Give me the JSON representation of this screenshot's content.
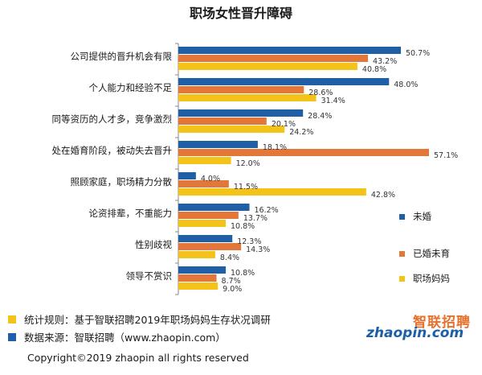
{
  "chart_data": {
    "type": "bar",
    "orientation": "horizontal",
    "title": "职场女性晋升障碍",
    "categories": [
      "公司提供的晋升机会有限",
      "个人能力和经验不足",
      "同等资历的人才多，竞争激烈",
      "处在婚育阶段，被动失去晋升",
      "照顾家庭，职场精力分散",
      "论资排辈，不重能力",
      "性别歧视",
      "领导不赏识"
    ],
    "series": [
      {
        "name": "未婚",
        "color": "#1f5fa6",
        "values": [
          50.7,
          48.0,
          28.4,
          18.1,
          4.0,
          16.2,
          12.3,
          10.8
        ]
      },
      {
        "name": "已婚未育",
        "color": "#e3773a",
        "values": [
          43.2,
          28.6,
          20.1,
          57.1,
          11.5,
          13.7,
          14.3,
          8.7
        ]
      },
      {
        "name": "职场妈妈",
        "color": "#f4c31a",
        "values": [
          40.8,
          31.4,
          24.2,
          12.0,
          42.8,
          10.8,
          8.4,
          9.0
        ]
      }
    ],
    "value_suffix": "%",
    "xlim": [
      0,
      60
    ],
    "legend_position": "right"
  },
  "footer": {
    "note1": {
      "text": "统计规则：基于智联招聘2019年职场妈妈生存状况调研",
      "color": "#f4c31a"
    },
    "note2": {
      "text": "数据来源：智联招聘（www.zhaopin.com）",
      "color": "#1f5fa6"
    },
    "copyright": "Copyright©2019 zhaopin all rights reserved"
  },
  "logo": {
    "cn": "智联招聘",
    "en": "zhaopin.com"
  }
}
